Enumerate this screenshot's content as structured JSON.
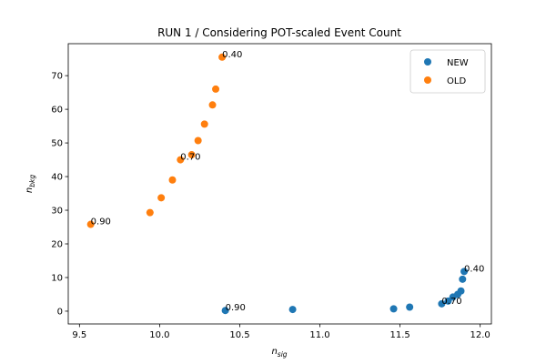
{
  "chart_data": {
    "type": "scatter",
    "title": "RUN 1 / Considering POT-scaled Event Count",
    "xlabel": {
      "base": "n",
      "sub": "sig"
    },
    "ylabel": {
      "base": "n",
      "sub": "bkg"
    },
    "xlim": [
      9.43,
      12.07
    ],
    "ylim": [
      -3.8,
      79.5
    ],
    "xticks": [
      9.5,
      10.0,
      10.5,
      11.0,
      11.5,
      12.0
    ],
    "xtick_labels": [
      "9.5",
      "10.0",
      "10.5",
      "11.0",
      "11.5",
      "12.0"
    ],
    "yticks": [
      0,
      10,
      20,
      30,
      40,
      50,
      60,
      70
    ],
    "ytick_labels": [
      "0",
      "10",
      "20",
      "30",
      "40",
      "50",
      "60",
      "70"
    ],
    "legend": {
      "position": "top-right"
    },
    "series": [
      {
        "name": "NEW",
        "color": "#1f77b4",
        "points": [
          [
            10.41,
            0.2
          ],
          [
            10.83,
            0.5
          ],
          [
            11.46,
            0.7
          ],
          [
            11.56,
            1.2
          ],
          [
            11.76,
            2.2
          ],
          [
            11.8,
            3.0
          ],
          [
            11.83,
            4.2
          ],
          [
            11.86,
            5.0
          ],
          [
            11.88,
            6.0
          ],
          [
            11.89,
            9.5
          ],
          [
            11.9,
            11.8
          ]
        ]
      },
      {
        "name": "OLD",
        "color": "#ff7f0e",
        "points": [
          [
            9.57,
            25.8
          ],
          [
            9.94,
            29.3
          ],
          [
            10.01,
            33.7
          ],
          [
            10.08,
            39.0
          ],
          [
            10.13,
            45.0
          ],
          [
            10.2,
            46.5
          ],
          [
            10.24,
            50.7
          ],
          [
            10.28,
            55.6
          ],
          [
            10.33,
            61.3
          ],
          [
            10.35,
            66.0
          ],
          [
            10.39,
            75.5
          ]
        ]
      }
    ],
    "annotations": [
      {
        "text": "0.90",
        "x": 10.41,
        "y": 0.2
      },
      {
        "text": "0.70",
        "x": 11.76,
        "y": 2.2
      },
      {
        "text": "0.40",
        "x": 11.9,
        "y": 11.8
      },
      {
        "text": "0.90",
        "x": 9.57,
        "y": 25.8
      },
      {
        "text": "0.70",
        "x": 10.13,
        "y": 45.0
      },
      {
        "text": "0.40",
        "x": 10.39,
        "y": 75.5
      }
    ]
  }
}
